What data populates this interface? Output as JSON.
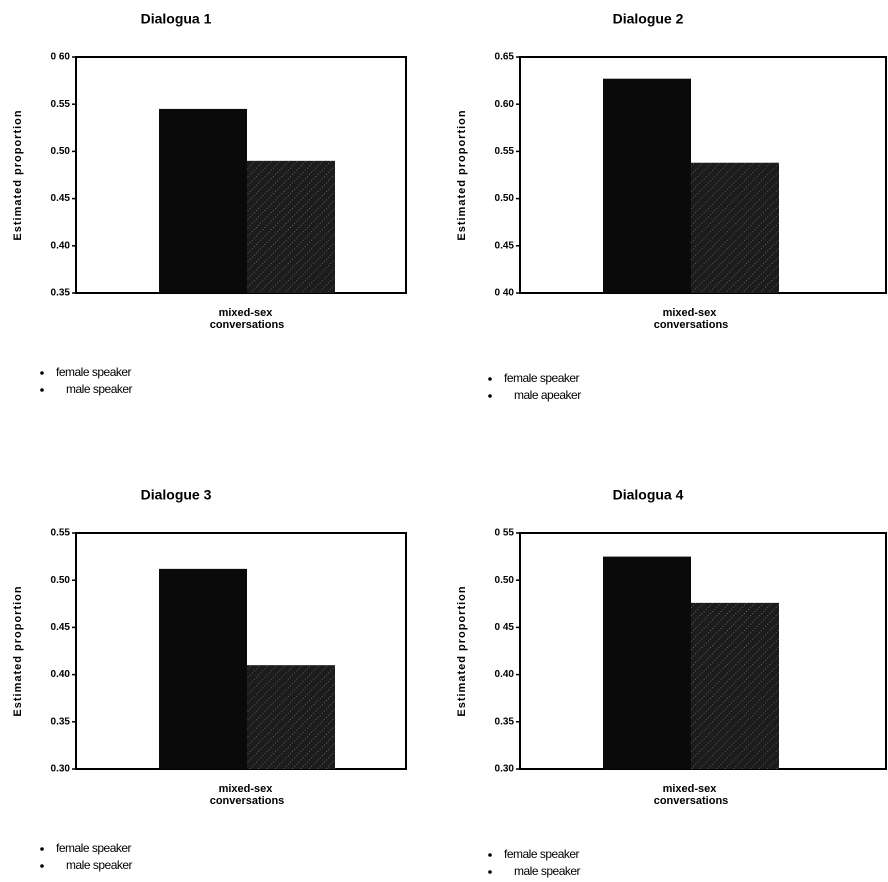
{
  "chart_data": [
    {
      "type": "bar",
      "title": "Dialogua 1",
      "y_label": "Estimated proportion",
      "categories": [
        "mixed-sex conversations"
      ],
      "series": [
        {
          "name": "female speaker",
          "color": "#0a0a0a",
          "values": [
            0.545
          ]
        },
        {
          "name": "male speaker",
          "color": "#1c1c1c",
          "values": [
            0.49
          ]
        }
      ],
      "ylim": [
        0.35,
        0.6
      ],
      "yticks": [
        0.35,
        {
          "value": 0.4,
          "label": "0.40"
        },
        0.45,
        {
          "value": 0.5,
          "label": "0.50"
        },
        0.55,
        {
          "value": 0.6,
          "label": "0 60"
        }
      ]
    },
    {
      "type": "bar",
      "title": "Dialogue 2",
      "y_label": "Estimated proportion",
      "categories": [
        "mixed-sex conversations"
      ],
      "series": [
        {
          "name": "female speaker",
          "color": "#0a0a0a",
          "values": [
            0.627
          ]
        },
        {
          "name": "male apeaker",
          "color": "#1c1c1c",
          "values": [
            0.538
          ]
        }
      ],
      "ylim": [
        0.4,
        0.65
      ],
      "yticks": [
        {
          "value": 0.4,
          "label": "0 40"
        },
        0.45,
        {
          "value": 0.5,
          "label": "0.50"
        },
        0.55,
        {
          "value": 0.6,
          "label": "0.60"
        },
        0.65
      ]
    },
    {
      "type": "bar",
      "title": "Dialogue 3",
      "y_label": "Estimated proportion",
      "categories": [
        "mixed-sex conversations"
      ],
      "series": [
        {
          "name": "female speaker",
          "color": "#0a0a0a",
          "values": [
            0.512
          ]
        },
        {
          "name": "male speaker",
          "color": "#1c1c1c",
          "values": [
            0.41
          ]
        }
      ],
      "ylim": [
        0.3,
        0.55
      ],
      "yticks": [
        {
          "value": 0.3,
          "label": "0.30"
        },
        0.35,
        {
          "value": 0.4,
          "label": "0.40"
        },
        0.45,
        {
          "value": 0.5,
          "label": "0.50"
        },
        0.55
      ]
    },
    {
      "type": "bar",
      "title": "Dialogua 4",
      "y_label": "Estimated proportion",
      "categories": [
        "mixed-sex conversations"
      ],
      "series": [
        {
          "name": "female speaker",
          "color": "#0a0a0a",
          "values": [
            0.525
          ]
        },
        {
          "name": "male speaker",
          "color": "#1c1c1c",
          "values": [
            0.476
          ]
        }
      ],
      "ylim": [
        0.3,
        0.55
      ],
      "yticks": [
        {
          "value": 0.3,
          "label": "0.30"
        },
        0.35,
        {
          "value": 0.4,
          "label": "0.40"
        },
        {
          "value": 0.45,
          "label": "0 45"
        },
        {
          "value": 0.5,
          "label": "0.50"
        },
        {
          "value": 0.55,
          "label": "0 55"
        }
      ]
    }
  ]
}
